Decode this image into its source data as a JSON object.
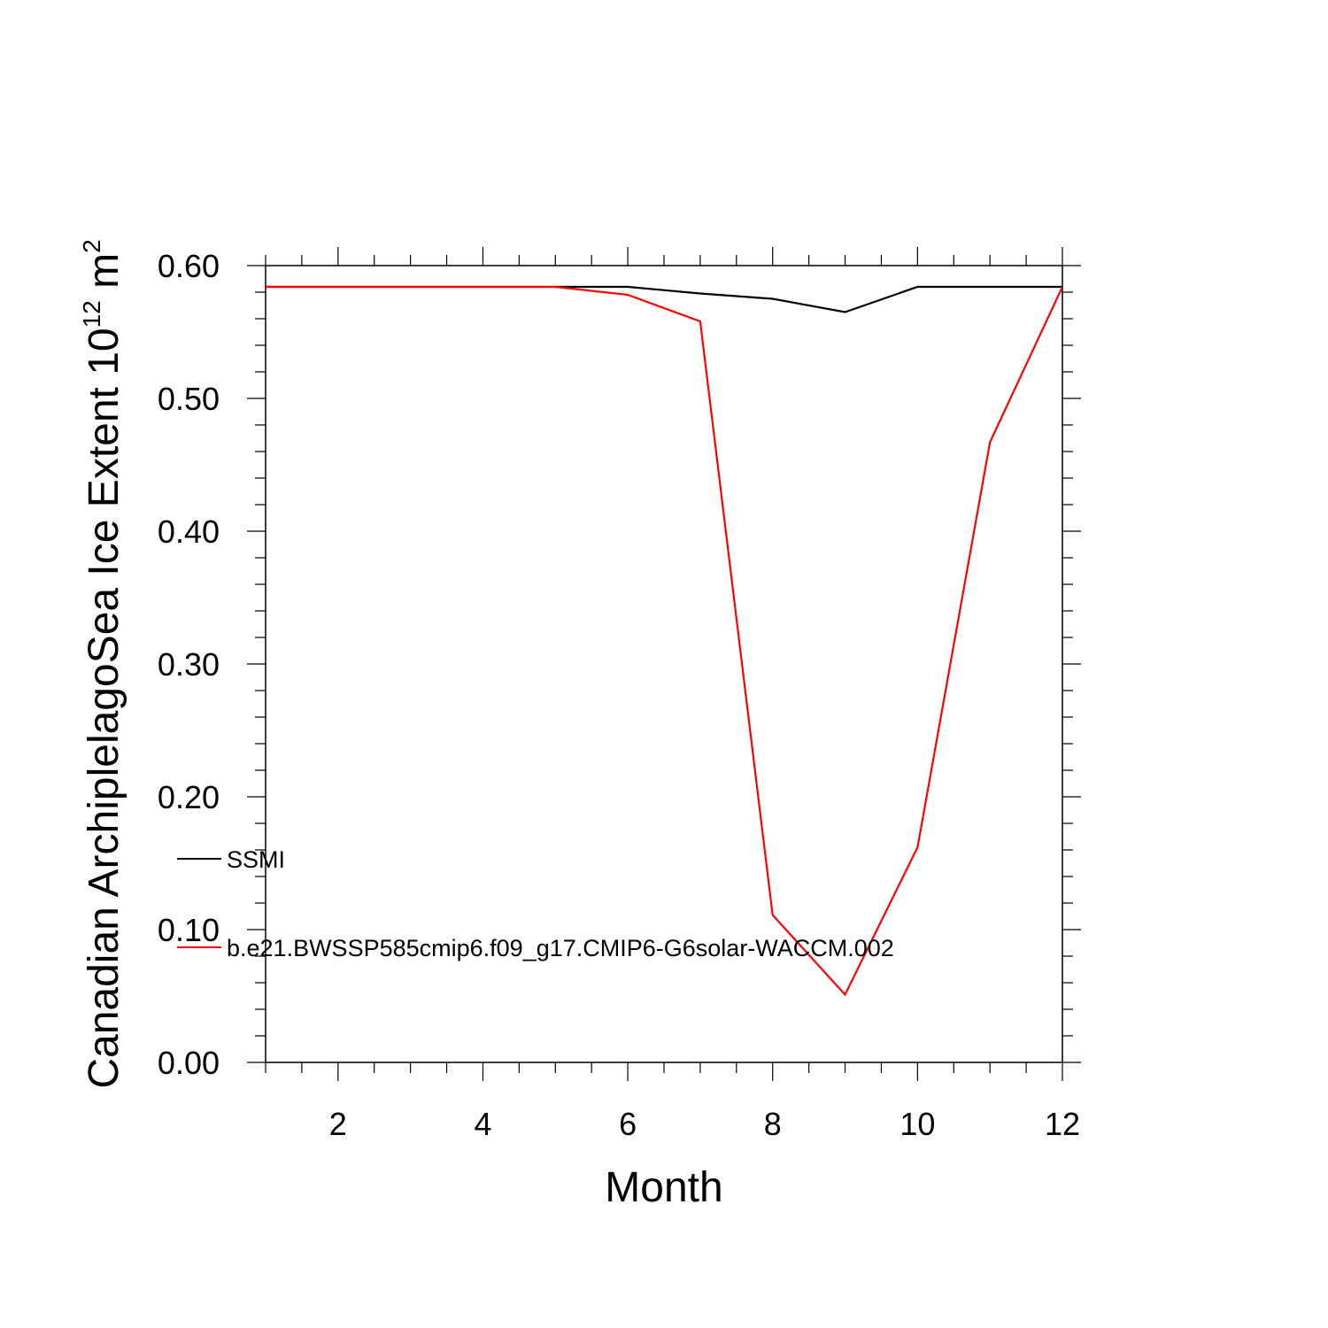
{
  "chart_data": {
    "type": "line",
    "title": "",
    "xlabel": "Month",
    "ylabel": {
      "main": "Canadian ArchiplelagoSea Ice Extent 10",
      "sup1": "12",
      "unit": " m",
      "sup2": "2"
    },
    "xlim": [
      1,
      12
    ],
    "ylim": [
      0,
      0.6
    ],
    "x_ticks": [
      2,
      4,
      6,
      8,
      10,
      12
    ],
    "x_tick_labels": [
      "2",
      "4",
      "6",
      "8",
      "10",
      "12"
    ],
    "y_ticks": [
      0,
      0.1,
      0.2,
      0.3,
      0.4,
      0.5,
      0.6
    ],
    "y_tick_labels": [
      "0.00",
      "0.10",
      "0.20",
      "0.30",
      "0.40",
      "0.50",
      "0.60"
    ],
    "grid": false,
    "legend_position": "left-inside",
    "x": [
      1,
      2,
      3,
      4,
      5,
      6,
      7,
      8,
      9,
      10,
      11,
      12
    ],
    "series": [
      {
        "name": "SSMI",
        "color": "#000000",
        "values": [
          0.584,
          0.584,
          0.584,
          0.584,
          0.584,
          0.584,
          0.579,
          0.575,
          0.565,
          0.584,
          0.584,
          0.584
        ]
      },
      {
        "name": "b.e21.BWSSP585cmip6.f09_g17.CMIP6-G6solar-WACCM.002",
        "color": "#ff0000",
        "values": [
          0.584,
          0.584,
          0.584,
          0.584,
          0.584,
          0.578,
          0.558,
          0.111,
          0.051,
          0.162,
          0.467,
          0.584
        ]
      }
    ]
  }
}
